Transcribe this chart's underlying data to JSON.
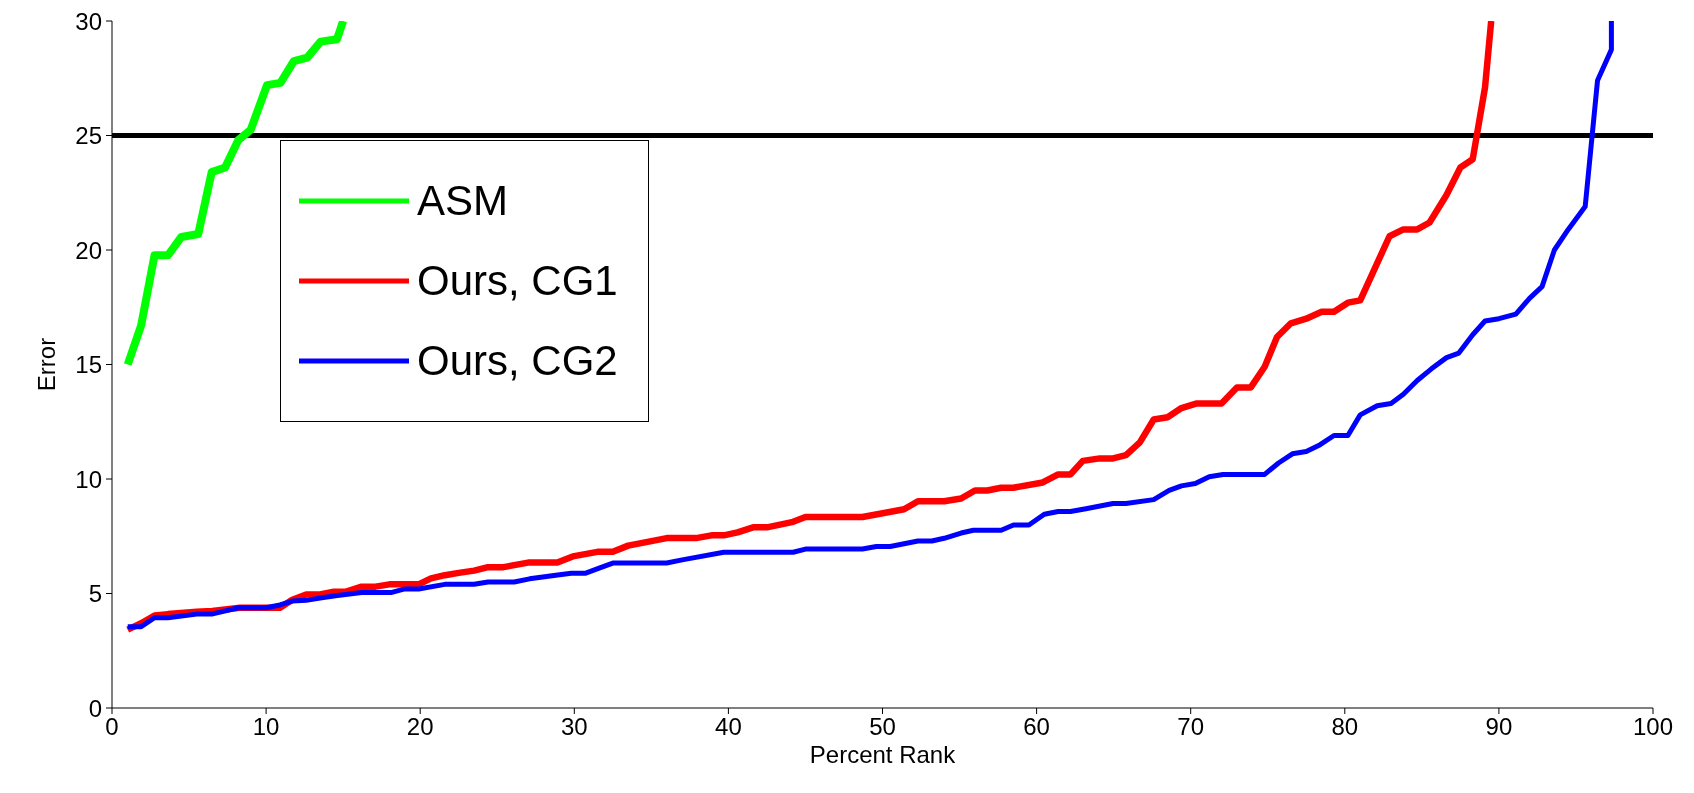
{
  "chart_data": {
    "type": "line",
    "xlabel": "Percent Rank",
    "ylabel": "Error",
    "xlim": [
      0,
      100
    ],
    "xticks": [
      0,
      10,
      20,
      30,
      40,
      50,
      60,
      70,
      80,
      90,
      100
    ],
    "ylim": [
      0,
      30
    ],
    "yticks": [
      0,
      5,
      10,
      15,
      20,
      25,
      30
    ],
    "grid": false,
    "legend": "top left",
    "marker": "none",
    "line_style": "solid",
    "ref_lines": [
      {
        "axis": "y",
        "value": 25,
        "color": "#000000"
      }
    ],
    "series": [
      {
        "name": "ASM",
        "color": "#00ff00",
        "x": [
          1.02,
          1.89,
          2.76,
          3.63,
          4.5,
          5.6,
          6.47,
          7.34,
          8.2,
          9.0,
          10.06,
          10.93,
          11.8,
          12.67,
          13.54,
          14.6,
          15.0
        ],
        "values": [
          15.0,
          16.7,
          19.77,
          19.77,
          20.57,
          20.7,
          23.4,
          23.6,
          24.8,
          25.25,
          27.2,
          27.3,
          28.25,
          28.4,
          29.1,
          29.2,
          30
        ]
      },
      {
        "name": "Ours, CG1",
        "color": "#ff0000",
        "x": [
          1.02,
          1.89,
          2.76,
          3.63,
          5.5,
          6.5,
          8.3,
          10.0,
          10.9,
          11.7,
          12.6,
          13.5,
          14.4,
          15.2,
          16.2,
          17.1,
          18.0,
          19.9,
          20.7,
          21.6,
          22.5,
          23.5,
          24.4,
          25.4,
          27.0,
          28.9,
          29.9,
          31.5,
          32.5,
          33.5,
          36.0,
          37.9,
          38.9,
          39.7,
          40.6,
          41.6,
          42.5,
          44.2,
          45.0,
          48.7,
          51.4,
          52.3,
          54.0,
          55.1,
          56.0,
          56.8,
          57.7,
          58.5,
          60.4,
          61.4,
          62.2,
          63.0,
          64.1,
          64.96,
          65.8,
          66.7,
          67.6,
          68.5,
          69.4,
          70.4,
          72.0,
          73.0,
          73.9,
          74.8,
          75.6,
          76.5,
          77.5,
          78.5,
          79.3,
          80.2,
          81.0,
          82.9,
          83.8,
          84.7,
          85.5,
          86.6,
          87.5,
          88.3,
          89.1,
          89.5
        ],
        "values": [
          3.42,
          3.7,
          4.04,
          4.1,
          4.2,
          4.24,
          4.38,
          4.38,
          4.38,
          4.73,
          4.96,
          4.96,
          5.08,
          5.08,
          5.3,
          5.3,
          5.4,
          5.4,
          5.66,
          5.8,
          5.9,
          6.0,
          6.15,
          6.15,
          6.35,
          6.35,
          6.62,
          6.82,
          6.82,
          7.09,
          7.42,
          7.42,
          7.54,
          7.54,
          7.67,
          7.89,
          7.89,
          8.13,
          8.34,
          8.34,
          8.68,
          9.03,
          9.03,
          9.15,
          9.5,
          9.5,
          9.62,
          9.62,
          9.85,
          10.2,
          10.2,
          10.79,
          10.9,
          10.9,
          11.04,
          11.6,
          12.6,
          12.7,
          13.1,
          13.3,
          13.3,
          14.0,
          14.0,
          14.9,
          16.2,
          16.8,
          17.0,
          17.3,
          17.3,
          17.7,
          17.8,
          20.6,
          20.9,
          20.9,
          21.2,
          22.4,
          23.6,
          23.96,
          27.1,
          30
        ]
      },
      {
        "name": "Ours, CG2",
        "color": "#0000ff",
        "x": [
          1.02,
          1.89,
          2.76,
          3.63,
          5.5,
          6.47,
          8.2,
          10.0,
          10.9,
          11.7,
          12.6,
          13.5,
          14.5,
          16.2,
          18.1,
          19.0,
          19.9,
          21.6,
          23.5,
          24.4,
          26.1,
          27.1,
          28.8,
          29.8,
          30.7,
          31.7,
          32.5,
          36.0,
          37.0,
          39.7,
          44.2,
          45.0,
          48.7,
          49.6,
          50.5,
          52.3,
          53.2,
          54.0,
          55.1,
          55.9,
          57.7,
          58.5,
          59.5,
          60.5,
          61.4,
          62.2,
          63.2,
          64.96,
          65.8,
          67.6,
          68.6,
          69.4,
          70.3,
          71.2,
          72.1,
          74.8,
          75.7,
          76.6,
          77.5,
          78.4,
          79.3,
          80.2,
          81.0,
          82.1,
          83.0,
          83.8,
          84.7,
          85.6,
          86.6,
          87.4,
          88.3,
          89.1,
          90.0,
          91.1,
          92.0,
          92.8,
          93.6,
          94.5,
          95.6,
          96.4,
          97.3,
          97.3
        ],
        "values": [
          3.55,
          3.55,
          3.94,
          3.94,
          4.1,
          4.1,
          4.38,
          4.38,
          4.5,
          4.67,
          4.7,
          4.8,
          4.9,
          5.04,
          5.04,
          5.2,
          5.2,
          5.4,
          5.4,
          5.5,
          5.5,
          5.64,
          5.8,
          5.88,
          5.88,
          6.13,
          6.33,
          6.33,
          6.47,
          6.8,
          6.8,
          6.94,
          6.94,
          7.05,
          7.05,
          7.29,
          7.29,
          7.41,
          7.64,
          7.76,
          7.76,
          7.99,
          7.99,
          8.46,
          8.58,
          8.58,
          8.7,
          8.93,
          8.93,
          9.1,
          9.5,
          9.7,
          9.8,
          10.1,
          10.2,
          10.2,
          10.7,
          11.1,
          11.2,
          11.5,
          11.9,
          11.9,
          12.8,
          13.2,
          13.3,
          13.7,
          14.3,
          14.8,
          15.3,
          15.5,
          16.3,
          16.9,
          17.0,
          17.2,
          17.9,
          18.4,
          20.0,
          20.9,
          21.9,
          27.4,
          28.75,
          30
        ]
      }
    ]
  }
}
